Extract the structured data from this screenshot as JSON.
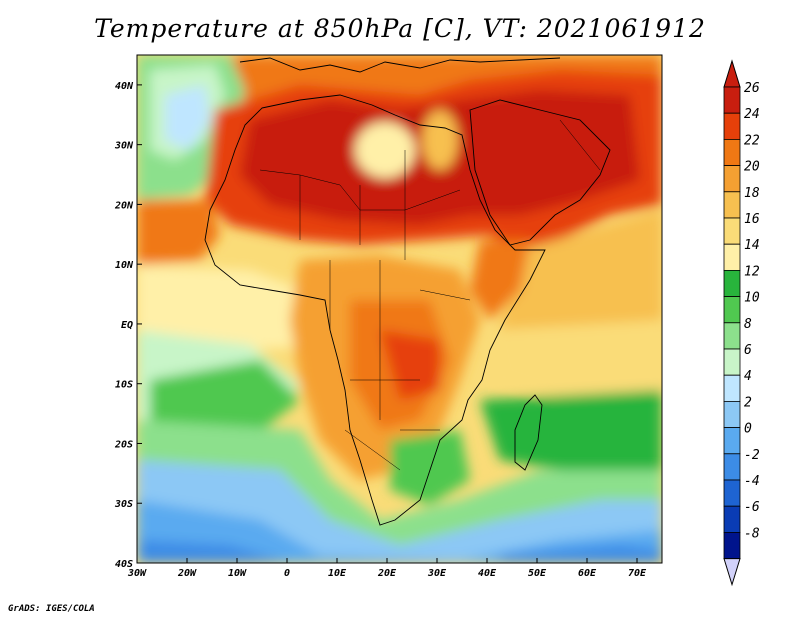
{
  "title": "Temperature at 850hPa [C], VT: 2021061912",
  "credit": "GrADS: IGES/COLA",
  "map": {
    "lon_range": [
      -30,
      75
    ],
    "lat_range": [
      -40,
      45
    ],
    "x_tick_labels": [
      {
        "lon": -30,
        "label": "30W"
      },
      {
        "lon": -20,
        "label": "20W"
      },
      {
        "lon": -10,
        "label": "10W"
      },
      {
        "lon": 0,
        "label": "0"
      },
      {
        "lon": 10,
        "label": "10E"
      },
      {
        "lon": 20,
        "label": "20E"
      },
      {
        "lon": 30,
        "label": "30E"
      },
      {
        "lon": 40,
        "label": "40E"
      },
      {
        "lon": 50,
        "label": "50E"
      },
      {
        "lon": 60,
        "label": "60E"
      },
      {
        "lon": 70,
        "label": "70E"
      }
    ],
    "y_tick_labels": [
      {
        "lat": 40,
        "label": "40N"
      },
      {
        "lat": 30,
        "label": "30N"
      },
      {
        "lat": 20,
        "label": "20N"
      },
      {
        "lat": 10,
        "label": "10N"
      },
      {
        "lat": 0,
        "label": "EQ"
      },
      {
        "lat": -10,
        "label": "10S"
      },
      {
        "lat": -20,
        "label": "20S"
      },
      {
        "lat": -30,
        "label": "30S"
      },
      {
        "lat": -40,
        "label": "40S"
      }
    ]
  },
  "colorbar": {
    "labels": [
      "26",
      "24",
      "22",
      "20",
      "18",
      "16",
      "14",
      "12",
      "10",
      "8",
      "6",
      "4",
      "2",
      "0",
      "-2",
      "-4",
      "-6",
      "-8"
    ],
    "colors": [
      "#c81e0f",
      "#e6400a",
      "#f07814",
      "#f5a032",
      "#f7c050",
      "#fadc78",
      "#fff0a8",
      "#28b43c",
      "#50c850",
      "#8ce08c",
      "#c8f5c8",
      "#bfe6ff",
      "#8cc8f5",
      "#5aaaf0",
      "#3c8ce6",
      "#1e64d2",
      "#0a3cb4",
      "#00148c"
    ],
    "top_arrow_color": "#c81e0f",
    "bottom_arrow_color": "#d2d2fa"
  }
}
